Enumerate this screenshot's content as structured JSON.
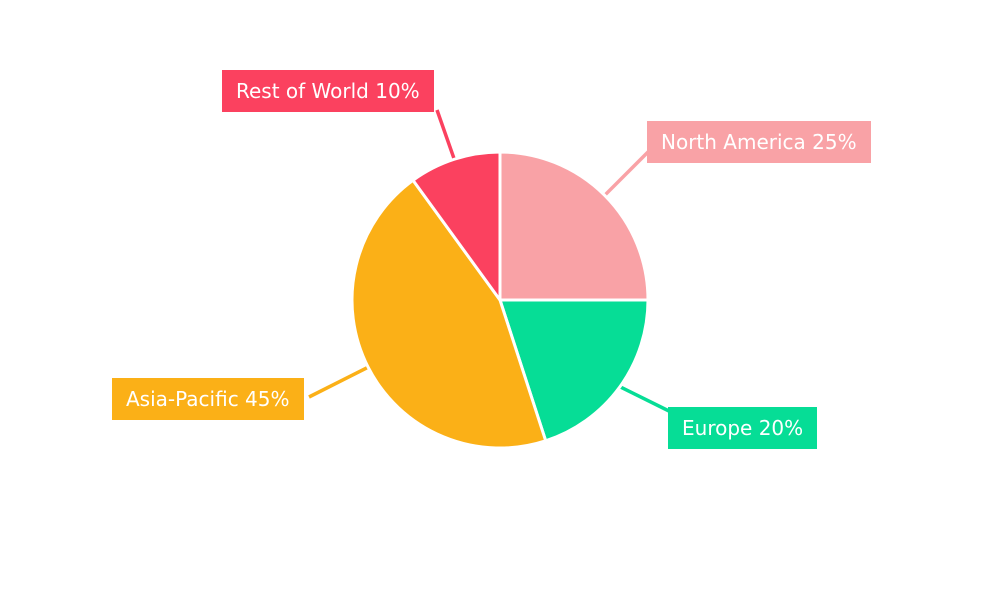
{
  "chart_data": {
    "type": "pie",
    "title": "",
    "unit": "%",
    "start_angle_deg": 0,
    "direction": "clockwise",
    "background_color": "#ffffff",
    "separator_color": "#ffffff",
    "label_text_color": "#ffffff",
    "slices": [
      {
        "label": "North America",
        "value": 25,
        "color": "#F9A2A6",
        "callout_text": "North America 25%"
      },
      {
        "label": "Europe",
        "value": 20,
        "color": "#06DD96",
        "callout_text": "Europe 20%"
      },
      {
        "label": "Asia-Pacific",
        "value": 45,
        "color": "#FBB017",
        "callout_text": "Asia-Pacific 45%"
      },
      {
        "label": "Rest of World",
        "value": 10,
        "color": "#FB415F",
        "callout_text": "Rest of World 10%"
      }
    ]
  }
}
